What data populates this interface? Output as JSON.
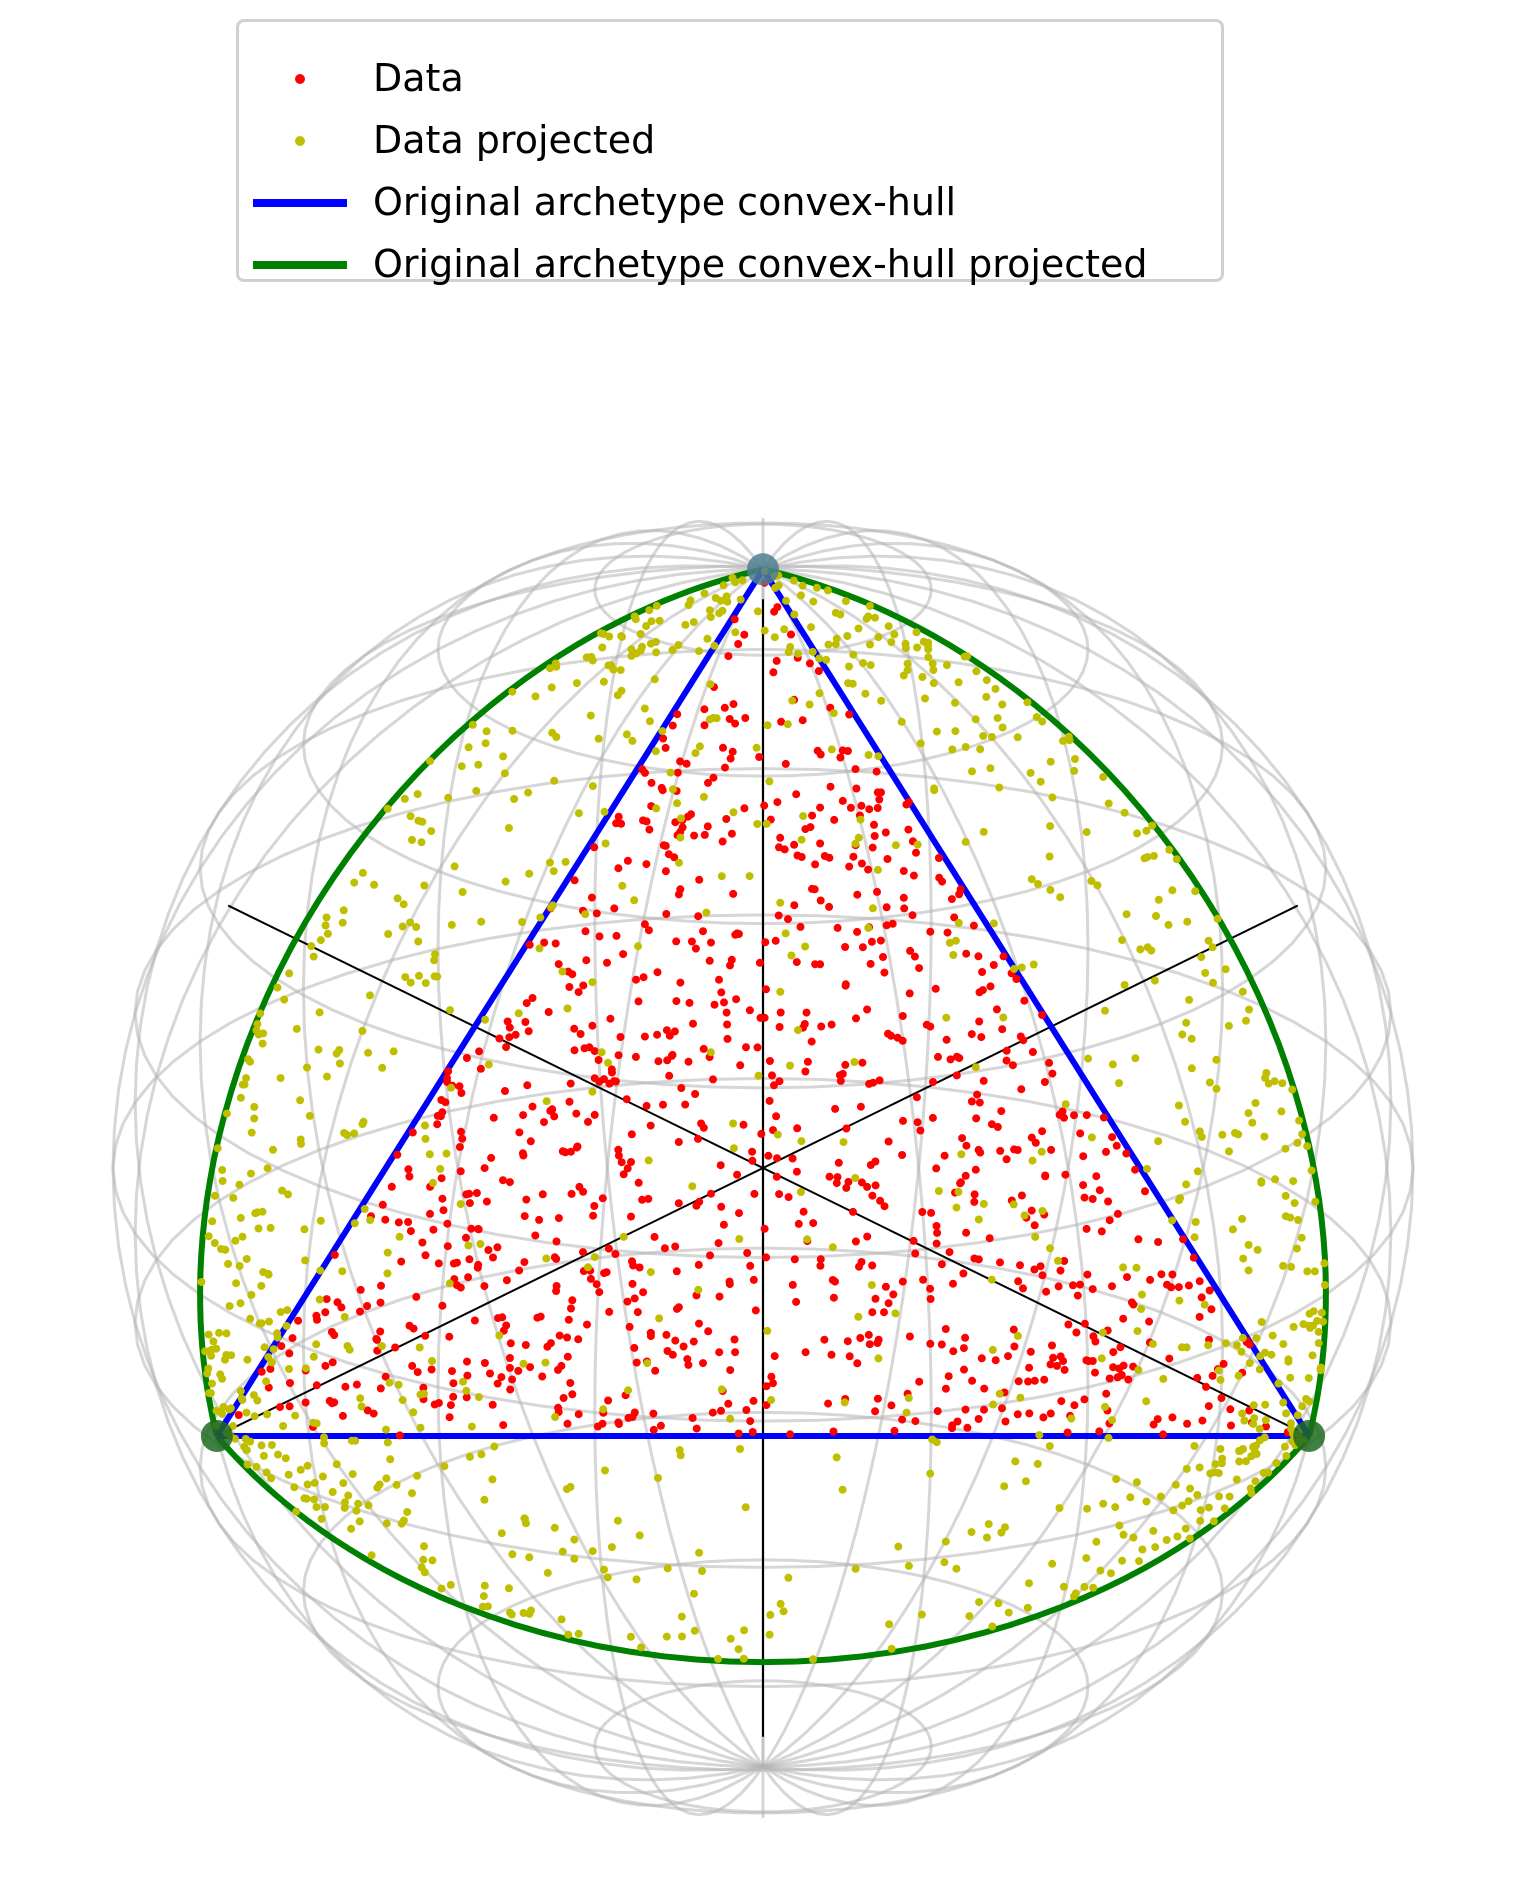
{
  "chart_data": {
    "type": "scatter",
    "title": "",
    "xlabel": "",
    "ylabel": "",
    "projection": "3d-sphere",
    "grid": true,
    "legend_placement": "top-center",
    "archetypes": [
      [
        0,
        0,
        1
      ],
      [
        -0.866,
        -0.5,
        -0.25
      ],
      [
        0.866,
        -0.5,
        -0.25
      ]
    ],
    "series": [
      {
        "name": "Data",
        "kind": "points",
        "color": "#ff0000",
        "count": 1000
      },
      {
        "name": "Data projected",
        "kind": "points",
        "color": "#bfbf00",
        "count": 1000
      },
      {
        "name": "Original archetype convex-hull",
        "kind": "line",
        "color": "#0000ff"
      },
      {
        "name": "Original archetype convex-hull projected",
        "kind": "line",
        "color": "#008000"
      }
    ]
  },
  "colors": {
    "data": "#ff0000",
    "projected": "#bfbf00",
    "hull": "#0000ff",
    "hull_projected": "#008000",
    "wireframe": "#b4b4b4",
    "axes": "#000000"
  }
}
